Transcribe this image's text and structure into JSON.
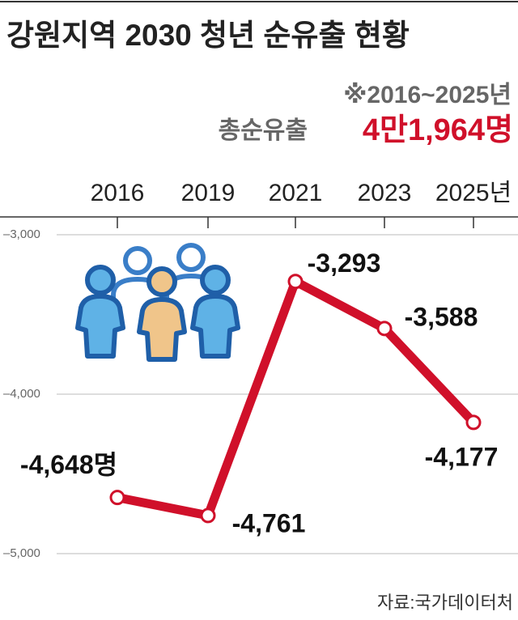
{
  "chart_data": {
    "type": "line",
    "title": "강원지역 2030 청년 순유출 현황",
    "subtitle": "※2016~2025년",
    "annotation": {
      "label": "총순유출",
      "value": "4만1,964명"
    },
    "source": "자료:국가데이터처",
    "categories": [
      "2016",
      "2019",
      "2021",
      "2023",
      "2025년"
    ],
    "series": [
      {
        "name": "순유출",
        "color": "#d0102a",
        "values": [
          -4648,
          -4761,
          -3293,
          -3588,
          -4177
        ],
        "value_labels": [
          "-4,648명",
          "-4,761",
          "-3,293",
          "-3,588",
          "-4,177"
        ]
      }
    ],
    "ylim": [
      -5000,
      -3000
    ],
    "yticks": [
      {
        "value": -3000,
        "label": "–3,000"
      },
      {
        "value": -4000,
        "label": "–4,000"
      },
      {
        "value": -5000,
        "label": "–5,000"
      }
    ],
    "grid": true
  }
}
